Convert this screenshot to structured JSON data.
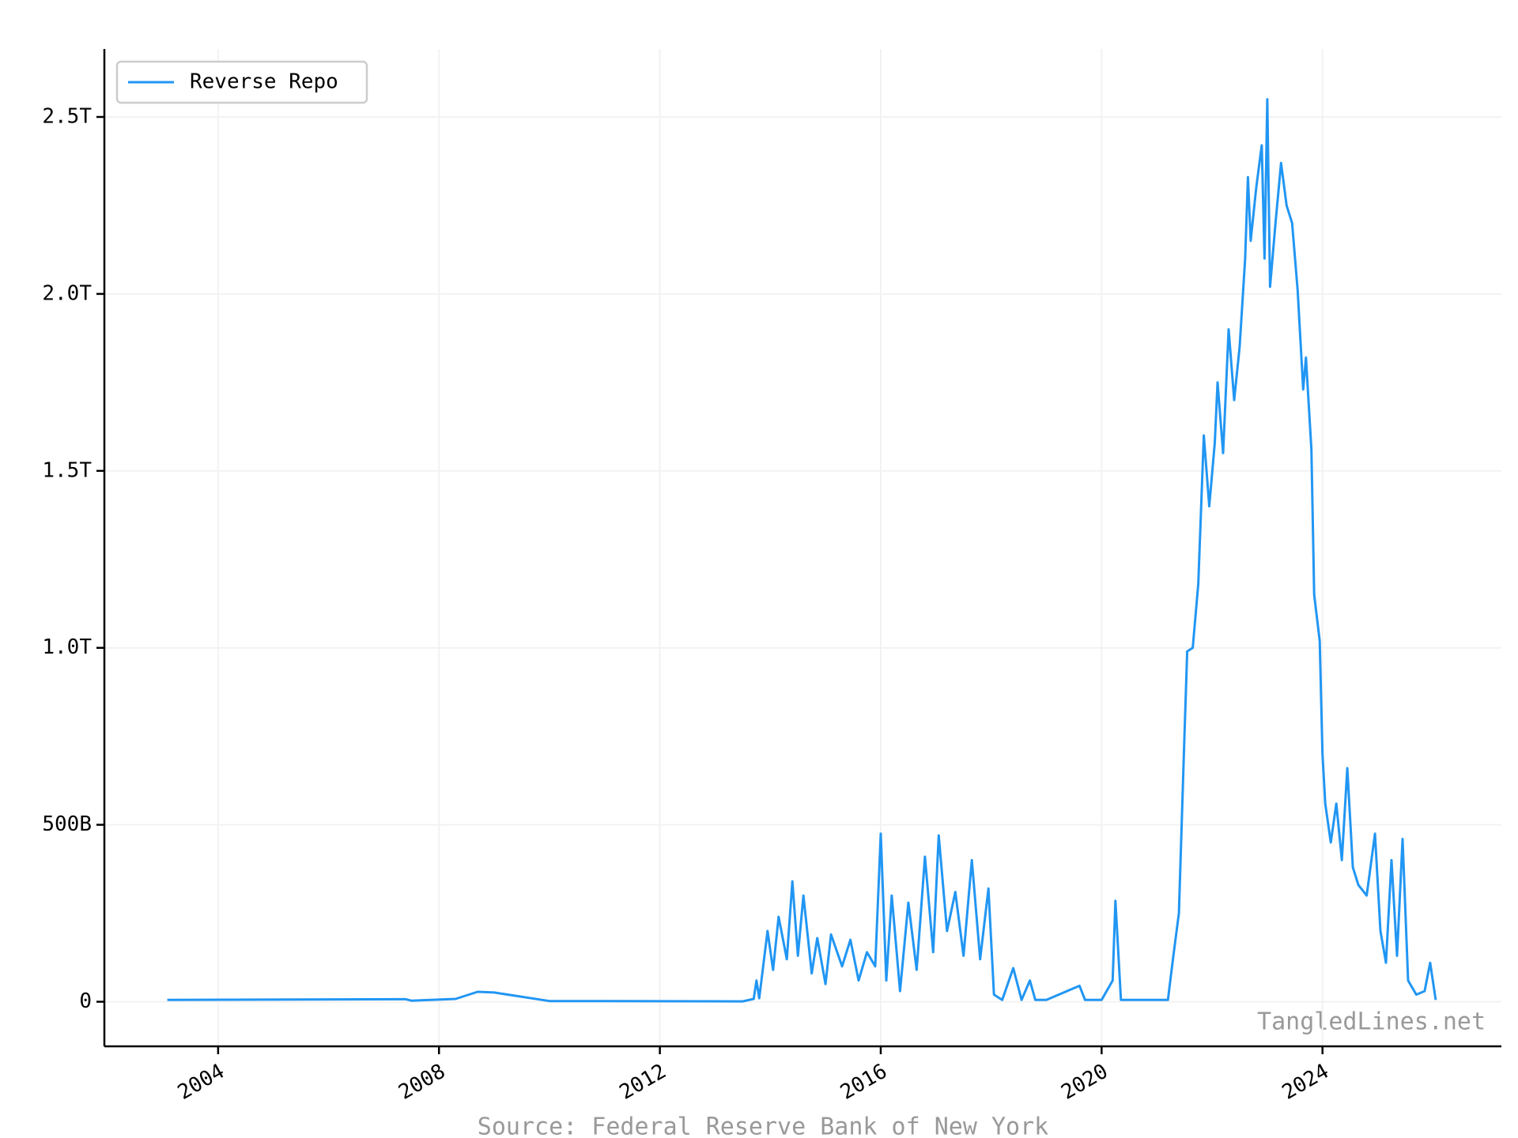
{
  "chart_data": {
    "type": "line",
    "source": "Source: Federal Reserve Bank of New York",
    "watermark": "TangledLines.net",
    "legend": "upper left",
    "grid": true,
    "x": [
      2003.08,
      2007.4,
      2007.5,
      2008.3,
      2008.7,
      2009.0,
      2010.0,
      2013.5,
      2013.7,
      2013.75,
      2013.8,
      2013.95,
      2014.05,
      2014.15,
      2014.3,
      2014.4,
      2014.5,
      2014.6,
      2014.75,
      2014.85,
      2015.0,
      2015.1,
      2015.3,
      2015.45,
      2015.6,
      2015.75,
      2015.9,
      2016.0,
      2016.1,
      2016.2,
      2016.35,
      2016.5,
      2016.65,
      2016.8,
      2016.95,
      2017.05,
      2017.2,
      2017.35,
      2017.5,
      2017.65,
      2017.8,
      2017.95,
      2018.05,
      2018.2,
      2018.4,
      2018.55,
      2018.7,
      2018.8,
      2019.0,
      2019.6,
      2019.7,
      2020.0,
      2020.2,
      2020.25,
      2020.35,
      2021.2,
      2021.3,
      2021.4,
      2021.5,
      2021.55,
      2021.65,
      2021.75,
      2021.85,
      2021.95,
      2022.05,
      2022.1,
      2022.2,
      2022.3,
      2022.4,
      2022.5,
      2022.6,
      2022.65,
      2022.7,
      2022.8,
      2022.9,
      2022.95,
      2023.0,
      2023.05,
      2023.15,
      2023.25,
      2023.35,
      2023.45,
      2023.55,
      2023.65,
      2023.7,
      2023.8,
      2023.85,
      2023.95,
      2024.0,
      2024.05,
      2024.15,
      2024.25,
      2024.35,
      2024.45,
      2024.55,
      2024.65,
      2024.8,
      2024.95,
      2025.05,
      2025.15,
      2025.25,
      2025.35,
      2025.45,
      2025.55,
      2025.7,
      2025.85,
      2025.95,
      2026.05
    ],
    "series": [
      {
        "name": "Reverse Repo",
        "color": "#2196f3",
        "values": [
          5,
          7,
          3,
          8,
          28,
          26,
          2,
          1,
          8,
          60,
          10,
          200,
          90,
          240,
          120,
          340,
          130,
          300,
          80,
          180,
          50,
          190,
          100,
          175,
          60,
          140,
          100,
          475,
          60,
          300,
          30,
          280,
          90,
          410,
          140,
          470,
          200,
          310,
          130,
          400,
          120,
          320,
          20,
          5,
          95,
          5,
          60,
          5,
          5,
          45,
          5,
          5,
          60,
          285,
          5,
          5,
          130,
          250,
          750,
          990,
          1000,
          1180,
          1600,
          1400,
          1580,
          1750,
          1550,
          1900,
          1700,
          1850,
          2100,
          2330,
          2150,
          2300,
          2420,
          2100,
          2550,
          2020,
          2200,
          2370,
          2250,
          2200,
          2010,
          1730,
          1820,
          1560,
          1150,
          1020,
          700,
          560,
          450,
          560,
          400,
          660,
          380,
          330,
          300,
          475,
          200,
          110,
          400,
          130,
          460,
          60,
          20,
          30,
          110,
          5
        ]
      }
    ],
    "xlim": [
      2001.94,
      2027.24
    ],
    "xticks": [
      2004,
      2008,
      2012,
      2016,
      2020,
      2024
    ],
    "ylim": [
      -126,
      2692
    ],
    "yticks": [
      0,
      {
        "value": 500,
        "label": "500B"
      },
      {
        "value": 1000,
        "label": "1.0T"
      },
      {
        "value": 1500,
        "label": "1.5T"
      },
      {
        "value": 2000,
        "label": "2.0T"
      },
      {
        "value": 2500,
        "label": "2.5T"
      }
    ]
  }
}
